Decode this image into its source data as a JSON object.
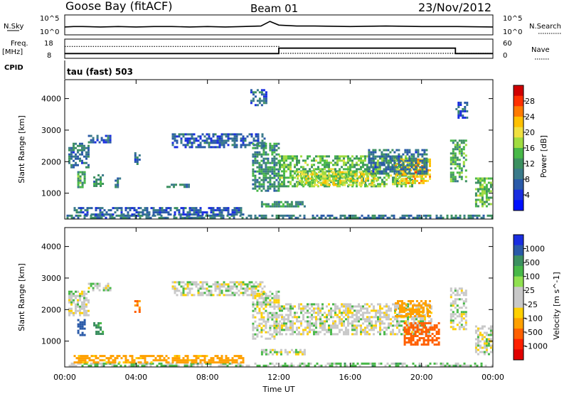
{
  "header": {
    "station": "Goose Bay (fitACF)",
    "beam": "Beam 01",
    "date": "23/Nov/2012"
  },
  "strip": {
    "nsky_label": "N.Sky",
    "nsky_ticks": [
      "10^5",
      "10^0"
    ],
    "nsearch_label": "N.Search",
    "nsearch_ticks": [
      "10^5",
      "10^0"
    ],
    "freq_label_line1": "Freq.",
    "freq_label_line2": "[MHz]",
    "freq_ticks": [
      "18",
      "8"
    ],
    "nave_label": "Nave",
    "nave_ticks": [
      "60",
      "0"
    ],
    "cpid_label": "CPID",
    "cpid_text": "tau (fast) 503"
  },
  "power_colorbar": {
    "label": "Power [dB]",
    "ticks": [
      "28",
      "24",
      "20",
      "16",
      "12",
      "8",
      "4"
    ],
    "colors": [
      "#d00000",
      "#ff3000",
      "#ff7a00",
      "#ffc000",
      "#f0e040",
      "#a0dc40",
      "#48b848",
      "#3c9060",
      "#3a7a8a",
      "#2a5aa8",
      "#1a2ee0",
      "#0010ff"
    ]
  },
  "velocity_colorbar": {
    "label": "Velocity [m s^-1]",
    "ticks": [
      "1000",
      "500",
      "100",
      "25",
      "-25",
      "-100",
      "-500",
      "-1000"
    ],
    "colors": [
      "#1a2ee0",
      "#2a5aa8",
      "#3c9060",
      "#48b848",
      "#90e050",
      "#c8c8c8",
      "#c8c8c8",
      "#ffd000",
      "#ffa000",
      "#ff6000",
      "#ff2000",
      "#e00000"
    ]
  },
  "chart_data": [
    {
      "type": "heatmap",
      "name": "power",
      "ylabel": "Slant Range [km]",
      "ylim": [
        180,
        4600
      ],
      "xlim": [
        0,
        24
      ],
      "yticks": [
        "1000",
        "2000",
        "3000",
        "4000"
      ],
      "blobs": [
        {
          "t0": 0.1,
          "t1": 24,
          "r0": 200,
          "r1": 320,
          "v": 8
        },
        {
          "t0": 0.2,
          "t1": 1.3,
          "r0": 1850,
          "r1": 2600,
          "v": 8
        },
        {
          "t0": 1.3,
          "t1": 2.6,
          "r0": 2600,
          "r1": 2850,
          "v": 6
        },
        {
          "t0": 0.7,
          "t1": 1.1,
          "r0": 1200,
          "r1": 1700,
          "v": 12
        },
        {
          "t0": 1.6,
          "t1": 2.1,
          "r0": 1200,
          "r1": 1600,
          "v": 10
        },
        {
          "t0": 2.8,
          "t1": 3.1,
          "r0": 1200,
          "r1": 1500,
          "v": 8
        },
        {
          "t0": 3.9,
          "t1": 4.2,
          "r0": 1900,
          "r1": 2300,
          "v": 8
        },
        {
          "t0": 5.7,
          "t1": 7.1,
          "r0": 1180,
          "r1": 1300,
          "v": 8
        },
        {
          "t0": 6.0,
          "t1": 11.2,
          "r0": 2450,
          "r1": 2900,
          "v": 6
        },
        {
          "t0": 0.5,
          "t1": 10.0,
          "r0": 320,
          "r1": 560,
          "v": 6
        },
        {
          "t0": 10.4,
          "t1": 11.3,
          "r0": 3800,
          "r1": 4300,
          "v": 6
        },
        {
          "t0": 10.5,
          "t1": 12.0,
          "r0": 1100,
          "r1": 2600,
          "v": 10
        },
        {
          "t0": 11.0,
          "t1": 13.4,
          "r0": 600,
          "r1": 750,
          "v": 10
        },
        {
          "t0": 12.0,
          "t1": 19.5,
          "r0": 1200,
          "r1": 2200,
          "v": 14
        },
        {
          "t0": 13.0,
          "t1": 17.5,
          "r0": 1250,
          "r1": 1700,
          "v": 18
        },
        {
          "t0": 18.5,
          "t1": 20.5,
          "r0": 1300,
          "r1": 2100,
          "v": 20
        },
        {
          "t0": 19.5,
          "t1": 20.2,
          "r0": 1500,
          "r1": 2100,
          "v": 22
        },
        {
          "t0": 17.0,
          "t1": 20.3,
          "r0": 1600,
          "r1": 2400,
          "v": 8
        },
        {
          "t0": 21.6,
          "t1": 22.5,
          "r0": 1400,
          "r1": 2700,
          "v": 12
        },
        {
          "t0": 21.9,
          "t1": 22.6,
          "r0": 3400,
          "r1": 3900,
          "v": 6
        },
        {
          "t0": 23.0,
          "t1": 24.0,
          "r0": 600,
          "r1": 1500,
          "v": 14
        }
      ]
    },
    {
      "type": "heatmap",
      "name": "velocity",
      "ylabel": "Slant Range [km]",
      "ylim": [
        180,
        4600
      ],
      "xlim": [
        0,
        24
      ],
      "yticks": [
        "1000",
        "2000",
        "3000",
        "4000"
      ],
      "xlabel": "Time UT",
      "xticks": [
        "00:00",
        "04:00",
        "08:00",
        "12:00",
        "16:00",
        "20:00",
        "00:00"
      ],
      "blobs": [
        {
          "t0": 0.1,
          "t1": 24,
          "r0": 200,
          "r1": 320,
          "v": 50
        },
        {
          "t0": 0.5,
          "t1": 10.0,
          "r0": 320,
          "r1": 560,
          "v": -150
        },
        {
          "t0": 0.2,
          "t1": 1.3,
          "r0": 1850,
          "r1": 2600,
          "v": 0
        },
        {
          "t0": 1.3,
          "t1": 2.6,
          "r0": 2600,
          "r1": 2850,
          "v": 0
        },
        {
          "t0": 0.7,
          "t1": 1.1,
          "r0": 1200,
          "r1": 1700,
          "v": 600
        },
        {
          "t0": 1.6,
          "t1": 2.1,
          "r0": 1200,
          "r1": 1600,
          "v": 150
        },
        {
          "t0": 3.9,
          "t1": 4.2,
          "r0": 1900,
          "r1": 2300,
          "v": -300
        },
        {
          "t0": 6.0,
          "t1": 11.2,
          "r0": 2450,
          "r1": 2900,
          "v": 0
        },
        {
          "t0": 10.5,
          "t1": 12.0,
          "r0": 1100,
          "r1": 2600,
          "v": 0
        },
        {
          "t0": 11.0,
          "t1": 13.4,
          "r0": 600,
          "r1": 750,
          "v": 0
        },
        {
          "t0": 12.0,
          "t1": 20.5,
          "r0": 1200,
          "r1": 2200,
          "v": 0
        },
        {
          "t0": 18.5,
          "t1": 20.5,
          "r0": 1800,
          "r1": 2300,
          "v": -200
        },
        {
          "t0": 19.0,
          "t1": 21.0,
          "r0": 900,
          "r1": 1600,
          "v": -600
        },
        {
          "t0": 21.6,
          "t1": 22.5,
          "r0": 1400,
          "r1": 2700,
          "v": 0
        },
        {
          "t0": 23.0,
          "t1": 24.0,
          "r0": 600,
          "r1": 1500,
          "v": 0
        }
      ]
    },
    {
      "type": "line",
      "name": "n_sky",
      "x": [
        0,
        0.5,
        1,
        2,
        3,
        4,
        5,
        6,
        7,
        8,
        9,
        10,
        11,
        11.5,
        12,
        13,
        14,
        16,
        18,
        20,
        22,
        24
      ],
      "y": [
        1.4,
        1.5,
        1.5,
        1.4,
        1.5,
        1.4,
        1.5,
        1.5,
        1.4,
        1.5,
        1.4,
        1.5,
        1.6,
        2.6,
        1.8,
        1.6,
        1.6,
        1.5,
        1.6,
        1.5,
        1.5,
        1.4
      ]
    },
    {
      "type": "line",
      "name": "frequency",
      "x": [
        0,
        12.0,
        12.0,
        21.9,
        21.9,
        24
      ],
      "y": [
        10.5,
        10.5,
        13.3,
        13.3,
        10.5,
        10.5
      ]
    },
    {
      "type": "line",
      "name": "nave",
      "x": [
        0,
        12.0,
        12.0,
        24
      ],
      "y": [
        29,
        29,
        0,
        0
      ]
    }
  ]
}
